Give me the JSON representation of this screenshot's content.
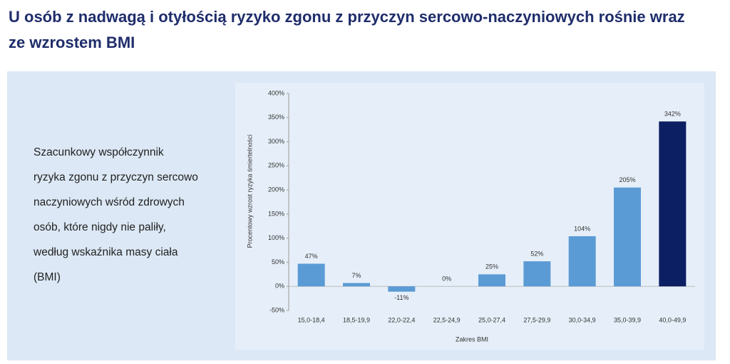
{
  "slide": {
    "title": "U osób z nadwagą i otyłością ryzyko zgonu z przyczyn sercowo-naczyniowych rośnie wraz ze wzrostem BMI",
    "description": [
      "Szacunkowy współczynnik",
      "ryzyka zgonu z przyczyn sercowo",
      "naczyniowych wśród zdrowych",
      "osób, które nigdy nie paliły,",
      "według wskaźnika masy ciała",
      "(BMI)"
    ]
  },
  "chart_data": {
    "type": "bar",
    "x_label": "Zakres BMI",
    "y_label": "Procentowy wzrost ryzyka śmiertelności",
    "categories": [
      "15,0-18,4",
      "18,5-19,9",
      "22,0-22,4",
      "22,5-24,9",
      "25,0-27,4",
      "27,5-29,9",
      "30,0-34,9",
      "35,0-39,9",
      "40,0-49,9"
    ],
    "values": [
      47,
      7,
      -11,
      0,
      25,
      52,
      104,
      205,
      342
    ],
    "value_labels": [
      "47%",
      "7%",
      "-11%",
      "0%",
      "25%",
      "52%",
      "104%",
      "205%",
      "342%"
    ],
    "colors": [
      "#5b9bd5",
      "#5b9bd5",
      "#5b9bd5",
      "#5b9bd5",
      "#5b9bd5",
      "#5b9bd5",
      "#5b9bd5",
      "#5b9bd5",
      "#0d1f63"
    ],
    "ylim": [
      -50,
      400
    ],
    "yticks": [
      {
        "value": -50,
        "label": "-50%"
      },
      {
        "value": 0,
        "label": "0%"
      },
      {
        "value": 50,
        "label": "50%"
      },
      {
        "value": 100,
        "label": "100%"
      },
      {
        "value": 150,
        "label": "150%"
      },
      {
        "value": 200,
        "label": "200%"
      },
      {
        "value": 250,
        "label": "250%"
      },
      {
        "value": 300,
        "label": "300%"
      },
      {
        "value": 350,
        "label": "350%"
      },
      {
        "value": 400,
        "label": "400%"
      }
    ],
    "grid": false
  }
}
